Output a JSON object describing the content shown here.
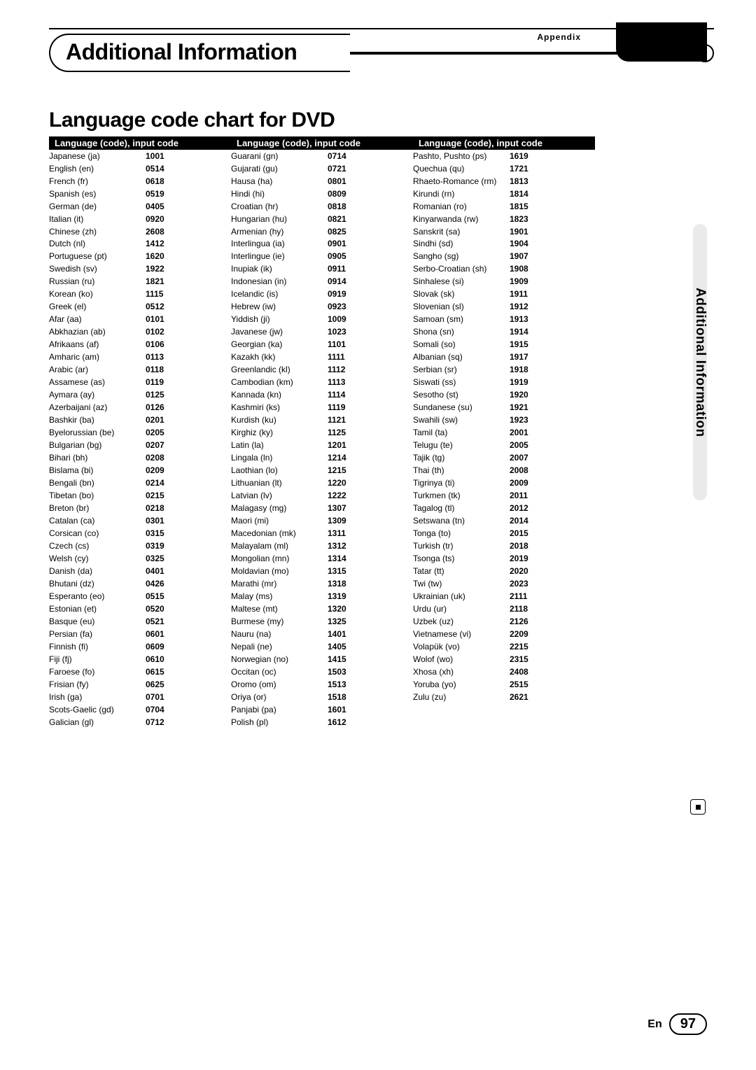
{
  "header": {
    "appendix": "Appendix",
    "section_title": "Additional Information",
    "chart_title": "Language code chart for DVD",
    "side_label": "Additional Information",
    "column_header": "Language (code), input code"
  },
  "footer": {
    "lang": "En",
    "page": "97"
  },
  "columns": [
    [
      {
        "lang": "Japanese (ja)",
        "code": "1001"
      },
      {
        "lang": "English (en)",
        "code": "0514"
      },
      {
        "lang": "French (fr)",
        "code": "0618"
      },
      {
        "lang": "Spanish (es)",
        "code": "0519"
      },
      {
        "lang": "German (de)",
        "code": "0405"
      },
      {
        "lang": "Italian (it)",
        "code": "0920"
      },
      {
        "lang": "Chinese (zh)",
        "code": "2608"
      },
      {
        "lang": "Dutch (nl)",
        "code": "1412"
      },
      {
        "lang": "Portuguese (pt)",
        "code": "1620"
      },
      {
        "lang": "Swedish (sv)",
        "code": "1922"
      },
      {
        "lang": "Russian (ru)",
        "code": "1821"
      },
      {
        "lang": "Korean (ko)",
        "code": "1115"
      },
      {
        "lang": "Greek (el)",
        "code": "0512"
      },
      {
        "lang": "Afar (aa)",
        "code": "0101"
      },
      {
        "lang": "Abkhazian (ab)",
        "code": "0102"
      },
      {
        "lang": "Afrikaans (af)",
        "code": "0106"
      },
      {
        "lang": "Amharic (am)",
        "code": "0113"
      },
      {
        "lang": "Arabic (ar)",
        "code": "0118"
      },
      {
        "lang": "Assamese (as)",
        "code": "0119"
      },
      {
        "lang": "Aymara (ay)",
        "code": "0125"
      },
      {
        "lang": "Azerbaijani (az)",
        "code": "0126"
      },
      {
        "lang": "Bashkir (ba)",
        "code": "0201"
      },
      {
        "lang": "Byelorussian (be)",
        "code": "0205"
      },
      {
        "lang": "Bulgarian (bg)",
        "code": "0207"
      },
      {
        "lang": "Bihari (bh)",
        "code": "0208"
      },
      {
        "lang": "Bislama (bi)",
        "code": "0209"
      },
      {
        "lang": "Bengali (bn)",
        "code": "0214"
      },
      {
        "lang": "Tibetan (bo)",
        "code": "0215"
      },
      {
        "lang": "Breton (br)",
        "code": "0218"
      },
      {
        "lang": "Catalan (ca)",
        "code": "0301"
      },
      {
        "lang": "Corsican (co)",
        "code": "0315"
      },
      {
        "lang": "Czech (cs)",
        "code": "0319"
      },
      {
        "lang": "Welsh (cy)",
        "code": "0325"
      },
      {
        "lang": "Danish (da)",
        "code": "0401"
      },
      {
        "lang": "Bhutani (dz)",
        "code": "0426"
      },
      {
        "lang": "Esperanto (eo)",
        "code": "0515"
      },
      {
        "lang": "Estonian (et)",
        "code": "0520"
      },
      {
        "lang": "Basque (eu)",
        "code": "0521"
      },
      {
        "lang": "Persian (fa)",
        "code": "0601"
      },
      {
        "lang": "Finnish (fi)",
        "code": "0609"
      },
      {
        "lang": "Fiji (fj)",
        "code": "0610"
      },
      {
        "lang": "Faroese (fo)",
        "code": "0615"
      },
      {
        "lang": "Frisian (fy)",
        "code": "0625"
      },
      {
        "lang": "Irish (ga)",
        "code": "0701"
      },
      {
        "lang": "Scots-Gaelic (gd)",
        "code": "0704"
      },
      {
        "lang": "Galician (gl)",
        "code": "0712"
      }
    ],
    [
      {
        "lang": "Guarani (gn)",
        "code": "0714"
      },
      {
        "lang": "Gujarati (gu)",
        "code": "0721"
      },
      {
        "lang": "Hausa (ha)",
        "code": "0801"
      },
      {
        "lang": "Hindi (hi)",
        "code": "0809"
      },
      {
        "lang": "Croatian (hr)",
        "code": "0818"
      },
      {
        "lang": "Hungarian (hu)",
        "code": "0821"
      },
      {
        "lang": "Armenian (hy)",
        "code": "0825"
      },
      {
        "lang": "Interlingua (ia)",
        "code": "0901"
      },
      {
        "lang": "Interlingue (ie)",
        "code": "0905"
      },
      {
        "lang": "Inupiak (ik)",
        "code": "0911"
      },
      {
        "lang": "Indonesian (in)",
        "code": "0914"
      },
      {
        "lang": "Icelandic (is)",
        "code": "0919"
      },
      {
        "lang": "Hebrew (iw)",
        "code": "0923"
      },
      {
        "lang": "Yiddish (ji)",
        "code": "1009"
      },
      {
        "lang": "Javanese (jw)",
        "code": "1023"
      },
      {
        "lang": "Georgian (ka)",
        "code": "1101"
      },
      {
        "lang": "Kazakh (kk)",
        "code": "1111"
      },
      {
        "lang": "Greenlandic (kl)",
        "code": "1112"
      },
      {
        "lang": "Cambodian (km)",
        "code": "1113"
      },
      {
        "lang": "Kannada (kn)",
        "code": "1114"
      },
      {
        "lang": "Kashmiri (ks)",
        "code": "1119"
      },
      {
        "lang": "Kurdish (ku)",
        "code": "1121"
      },
      {
        "lang": "Kirghiz (ky)",
        "code": "1125"
      },
      {
        "lang": "Latin (la)",
        "code": "1201"
      },
      {
        "lang": "Lingala (ln)",
        "code": "1214"
      },
      {
        "lang": "Laothian (lo)",
        "code": "1215"
      },
      {
        "lang": "Lithuanian (lt)",
        "code": "1220"
      },
      {
        "lang": "Latvian (lv)",
        "code": "1222"
      },
      {
        "lang": "Malagasy (mg)",
        "code": "1307"
      },
      {
        "lang": "Maori (mi)",
        "code": "1309"
      },
      {
        "lang": "Macedonian (mk)",
        "code": "1311"
      },
      {
        "lang": "Malayalam (ml)",
        "code": "1312"
      },
      {
        "lang": "Mongolian (mn)",
        "code": "1314"
      },
      {
        "lang": "Moldavian (mo)",
        "code": "1315"
      },
      {
        "lang": "Marathi (mr)",
        "code": "1318"
      },
      {
        "lang": "Malay (ms)",
        "code": "1319"
      },
      {
        "lang": "Maltese (mt)",
        "code": "1320"
      },
      {
        "lang": "Burmese (my)",
        "code": "1325"
      },
      {
        "lang": "Nauru (na)",
        "code": "1401"
      },
      {
        "lang": "Nepali (ne)",
        "code": "1405"
      },
      {
        "lang": "Norwegian (no)",
        "code": "1415"
      },
      {
        "lang": "Occitan (oc)",
        "code": "1503"
      },
      {
        "lang": "Oromo (om)",
        "code": "1513"
      },
      {
        "lang": "Oriya (or)",
        "code": "1518"
      },
      {
        "lang": "Panjabi (pa)",
        "code": "1601"
      },
      {
        "lang": "Polish (pl)",
        "code": "1612"
      }
    ],
    [
      {
        "lang": "Pashto, Pushto (ps)",
        "code": "1619"
      },
      {
        "lang": "Quechua (qu)",
        "code": "1721"
      },
      {
        "lang": "Rhaeto-Romance (rm)",
        "code": "1813"
      },
      {
        "lang": "Kirundi (rn)",
        "code": "1814"
      },
      {
        "lang": "Romanian (ro)",
        "code": "1815"
      },
      {
        "lang": "Kinyarwanda (rw)",
        "code": "1823"
      },
      {
        "lang": "Sanskrit (sa)",
        "code": "1901"
      },
      {
        "lang": "Sindhi (sd)",
        "code": "1904"
      },
      {
        "lang": "Sangho (sg)",
        "code": "1907"
      },
      {
        "lang": "Serbo-Croatian (sh)",
        "code": "1908"
      },
      {
        "lang": "Sinhalese (si)",
        "code": "1909"
      },
      {
        "lang": "Slovak (sk)",
        "code": "1911"
      },
      {
        "lang": "Slovenian (sl)",
        "code": "1912"
      },
      {
        "lang": "Samoan (sm)",
        "code": "1913"
      },
      {
        "lang": "Shona (sn)",
        "code": "1914"
      },
      {
        "lang": "Somali (so)",
        "code": "1915"
      },
      {
        "lang": "Albanian (sq)",
        "code": "1917"
      },
      {
        "lang": "Serbian (sr)",
        "code": "1918"
      },
      {
        "lang": "Siswati (ss)",
        "code": "1919"
      },
      {
        "lang": "Sesotho (st)",
        "code": "1920"
      },
      {
        "lang": "Sundanese (su)",
        "code": "1921"
      },
      {
        "lang": "Swahili (sw)",
        "code": "1923"
      },
      {
        "lang": "Tamil (ta)",
        "code": "2001"
      },
      {
        "lang": "Telugu (te)",
        "code": "2005"
      },
      {
        "lang": "Tajik (tg)",
        "code": "2007"
      },
      {
        "lang": "Thai (th)",
        "code": "2008"
      },
      {
        "lang": "Tigrinya (ti)",
        "code": "2009"
      },
      {
        "lang": "Turkmen (tk)",
        "code": "2011"
      },
      {
        "lang": "Tagalog (tl)",
        "code": "2012"
      },
      {
        "lang": "Setswana (tn)",
        "code": "2014"
      },
      {
        "lang": "Tonga (to)",
        "code": "2015"
      },
      {
        "lang": "Turkish (tr)",
        "code": "2018"
      },
      {
        "lang": "Tsonga (ts)",
        "code": "2019"
      },
      {
        "lang": "Tatar (tt)",
        "code": "2020"
      },
      {
        "lang": "Twi (tw)",
        "code": "2023"
      },
      {
        "lang": "Ukrainian (uk)",
        "code": "2111"
      },
      {
        "lang": "Urdu (ur)",
        "code": "2118"
      },
      {
        "lang": "Uzbek (uz)",
        "code": "2126"
      },
      {
        "lang": "Vietnamese (vi)",
        "code": "2209"
      },
      {
        "lang": "Volapük (vo)",
        "code": "2215"
      },
      {
        "lang": "Wolof (wo)",
        "code": "2315"
      },
      {
        "lang": "Xhosa (xh)",
        "code": "2408"
      },
      {
        "lang": "Yoruba (yo)",
        "code": "2515"
      },
      {
        "lang": "Zulu (zu)",
        "code": "2621"
      }
    ]
  ]
}
